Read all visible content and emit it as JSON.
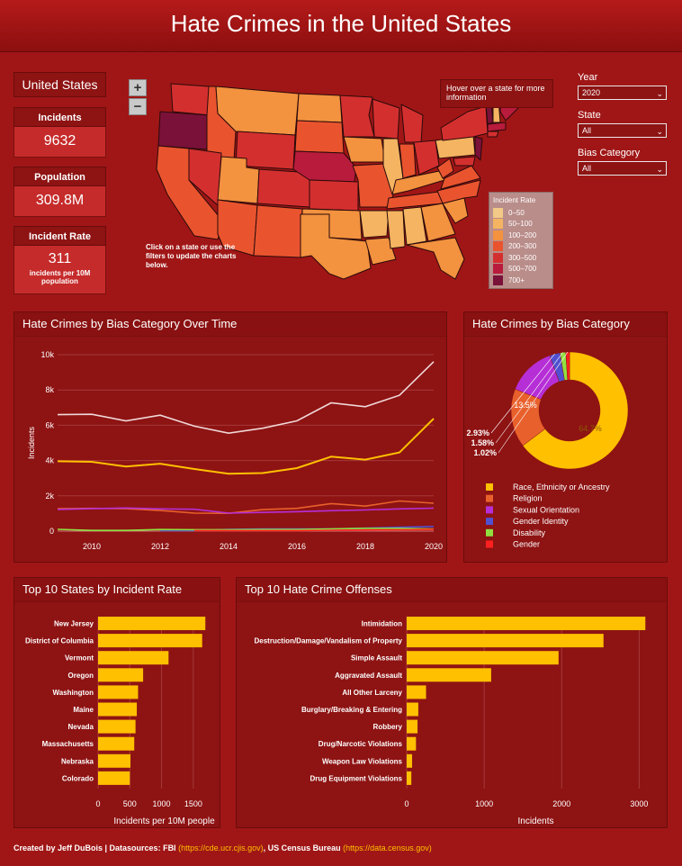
{
  "header": {
    "title": "Hate Crimes in the United States"
  },
  "summary": {
    "location": "United States",
    "incidents_label": "Incidents",
    "incidents_value": "9632",
    "population_label": "Population",
    "population_value": "309.8M",
    "rate_label": "Incident Rate",
    "rate_value": "311",
    "rate_unit": "incidents per 10M population"
  },
  "map": {
    "zoom_in": "+",
    "zoom_out": "−",
    "hover_text": "Hover over a state for more information",
    "click_note": "Click on a state or use the filters to update the charts below.",
    "legend_title": "Incident Rate",
    "legend": [
      {
        "label": "0–50",
        "color": "#f2c987"
      },
      {
        "label": "50–100",
        "color": "#f5b461"
      },
      {
        "label": "100–200",
        "color": "#f3923f"
      },
      {
        "label": "200–300",
        "color": "#e9542f"
      },
      {
        "label": "300–500",
        "color": "#d42f2f"
      },
      {
        "label": "500–700",
        "color": "#b81b3b"
      },
      {
        "label": "700+",
        "color": "#7a1138"
      }
    ]
  },
  "filters": {
    "year_label": "Year",
    "year_value": "2020",
    "state_label": "State",
    "state_value": "All",
    "bias_label": "Bias Category",
    "bias_value": "All"
  },
  "panels": {
    "line_title": "Hate Crimes by Bias Category Over Time",
    "pie_title": "Hate Crimes by Bias Category",
    "states_title": "Top 10 States by Incident Rate",
    "offenses_title": "Top 10 Hate Crime Offenses"
  },
  "footer": {
    "credit": "Created by Jeff DuBois | Datasources: FBI ",
    "fbi_link": "(https://cde.ucr.cjis.gov)",
    "census": ", US Census Bureau ",
    "census_link": "(https://data.census.gov)"
  },
  "chart_data": [
    {
      "type": "line",
      "title": "Hate Crimes by Bias Category Over Time",
      "ylabel": "Incidents",
      "x": [
        2009,
        2010,
        2011,
        2012,
        2013,
        2014,
        2015,
        2016,
        2017,
        2018,
        2019,
        2020
      ],
      "xticks": [
        "2010",
        "2012",
        "2014",
        "2016",
        "2018",
        "2020"
      ],
      "yticks": [
        "0",
        "2k",
        "4k",
        "6k",
        "8k",
        "10k"
      ],
      "ylim": [
        0,
        10000
      ],
      "series": [
        {
          "color": "#f0d8d8",
          "values": [
            6600,
            6620,
            6250,
            6570,
            5950,
            5550,
            5830,
            6250,
            7270,
            7050,
            7700,
            9600
          ]
        },
        {
          "color": "#ffc000",
          "values": [
            3960,
            3930,
            3660,
            3820,
            3520,
            3250,
            3290,
            3570,
            4220,
            4050,
            4460,
            6380
          ]
        },
        {
          "color": "#e8612c",
          "values": [
            1270,
            1290,
            1270,
            1170,
            1020,
            1010,
            1220,
            1290,
            1560,
            1420,
            1710,
            1580
          ]
        },
        {
          "color": "#b62fd6",
          "values": [
            1230,
            1270,
            1310,
            1260,
            1240,
            1020,
            1060,
            1100,
            1160,
            1200,
            1260,
            1300
          ]
        },
        {
          "color": "#5050d0",
          "values": [
            null,
            null,
            null,
            30,
            30,
            100,
            120,
            130,
            120,
            170,
            220,
            260
          ]
        },
        {
          "color": "#90e040",
          "values": [
            100,
            40,
            40,
            90,
            80,
            80,
            90,
            90,
            120,
            160,
            160,
            110
          ]
        },
        {
          "color": "#ff2020",
          "values": [
            null,
            null,
            null,
            null,
            30,
            30,
            30,
            30,
            50,
            60,
            70,
            90
          ]
        }
      ]
    },
    {
      "type": "pie",
      "title": "Hate Crimes by Bias Category",
      "labels": [
        "Race, Ethnicity or Ancestry",
        "Religion",
        "Sexual Orientation",
        "Gender Identity",
        "Disability",
        "Gender"
      ],
      "values": [
        64.7,
        16.2,
        13.5,
        2.93,
        1.58,
        1.02
      ],
      "value_labels": [
        "64.7%",
        "16.2%",
        "13.5%",
        "2.93%",
        "1.58%",
        "1.02%"
      ],
      "colors": [
        "#ffc000",
        "#e8612c",
        "#b62fd6",
        "#5050d0",
        "#90e040",
        "#ff2020"
      ],
      "legend_position": "bottom"
    },
    {
      "type": "bar",
      "orientation": "horizontal",
      "title": "Top 10 States by Incident Rate",
      "xlabel": "Incidents per 10M people",
      "categories": [
        "New Jersey",
        "District of Columbia",
        "Vermont",
        "Oregon",
        "Washington",
        "Maine",
        "Nevada",
        "Massachusetts",
        "Nebraska",
        "Colorado"
      ],
      "values": [
        1690,
        1640,
        1110,
        710,
        630,
        610,
        590,
        570,
        510,
        500
      ],
      "xticks": [
        0,
        500,
        1000,
        1500
      ],
      "xlim": [
        0,
        1800
      ],
      "color": "#ffc000"
    },
    {
      "type": "bar",
      "orientation": "horizontal",
      "title": "Top 10 Hate Crime Offenses",
      "xlabel": "Incidents",
      "categories": [
        "Intimidation",
        "Destruction/Damage/Vandalism of Property",
        "Simple Assault",
        "Aggravated Assault",
        "All Other Larceny",
        "Burglary/Breaking & Entering",
        "Robbery",
        "Drug/Narcotic Violations",
        "Weapon Law Violations",
        "Drug Equipment Violations"
      ],
      "values": [
        3080,
        2540,
        1960,
        1090,
        250,
        150,
        140,
        120,
        70,
        60
      ],
      "xticks": [
        0,
        1000,
        2000,
        3000
      ],
      "xlim": [
        0,
        3100
      ],
      "color": "#ffc000"
    }
  ]
}
